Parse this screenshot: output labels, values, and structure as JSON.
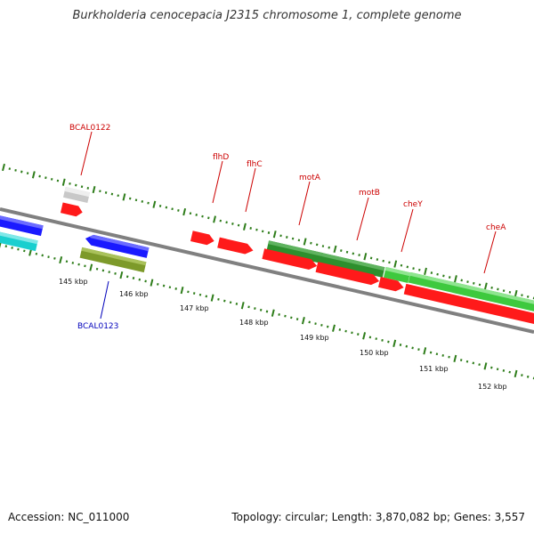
{
  "title": "Burkholderia cenocepacia J2315 chromosome 1, complete genome",
  "footer": {
    "accession": "Accession: NC_011000",
    "summary": "Topology: circular; Length: 3,870,082 bp; Genes: 3,557"
  },
  "colors": {
    "backbone": "#808080",
    "tick": "#2e7d1a",
    "label_forward": "#cc0000",
    "label_reverse": "#0000bb",
    "gene_red": "#ff1a1a",
    "gene_blue": "#1a1aff",
    "gene_cyan": "#19cfcf",
    "gene_olive": "#7d9a2a",
    "gene_grey": "#c8c8c8",
    "gene_darkgreen": "#2d8f2d",
    "gene_lightgreen": "#3ec93e"
  },
  "gene_labels": [
    {
      "text": "BCAL0122",
      "strand": "forward"
    },
    {
      "text": "flhD",
      "strand": "forward"
    },
    {
      "text": "flhC",
      "strand": "forward"
    },
    {
      "text": "motA",
      "strand": "forward"
    },
    {
      "text": "motB",
      "strand": "forward"
    },
    {
      "text": "cheY",
      "strand": "forward"
    },
    {
      "text": "cheA",
      "strand": "forward"
    },
    {
      "text": "BCAL0123",
      "strand": "reverse"
    }
  ],
  "scale_labels": [
    "145 kbp",
    "146 kbp",
    "147 kbp",
    "148 kbp",
    "149 kbp",
    "150 kbp",
    "151 kbp",
    "152 kbp"
  ]
}
